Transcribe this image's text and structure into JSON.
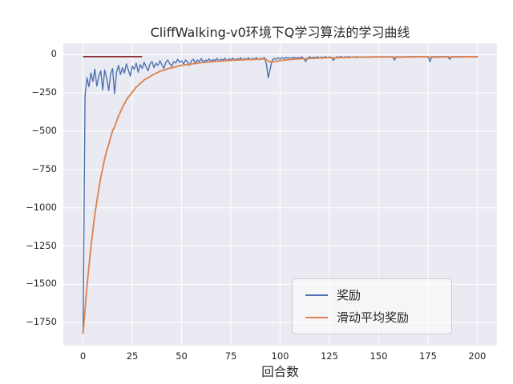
{
  "chart_data": {
    "type": "line",
    "title": "CliffWalking-v0环境下Q学习算法的学习曲线",
    "xlabel": "回合数",
    "ylabel": "",
    "grid": true,
    "legend_position": "lower right",
    "xlim": [
      -10,
      210
    ],
    "ylim": [
      -1900,
      75
    ],
    "x_ticks": [
      0,
      25,
      50,
      75,
      100,
      125,
      150,
      175,
      200
    ],
    "x_tick_labels": [
      "0",
      "25",
      "50",
      "75",
      "100",
      "125",
      "150",
      "175",
      "200"
    ],
    "y_ticks": [
      0,
      -250,
      -500,
      -750,
      -1000,
      -1250,
      -1500,
      -1750
    ],
    "y_tick_labels": [
      "0",
      "−250",
      "−500",
      "−750",
      "−1000",
      "−1250",
      "−1500",
      "−1750"
    ],
    "x_start": 0,
    "x_step": 1,
    "colors": {
      "plot_bg": "#eaeaf2",
      "grid": "#ffffff",
      "text": "#262626"
    },
    "reference_segment": {
      "x": [
        0,
        30
      ],
      "y": [
        -13,
        -13
      ],
      "color": "#8b2e2e"
    },
    "series": [
      {
        "name": "奖励",
        "color": "#4c72b0",
        "line_width": 1.4,
        "values": [
          -1820,
          -270,
          -150,
          -210,
          -120,
          -175,
          -95,
          -205,
          -140,
          -105,
          -230,
          -100,
          -155,
          -235,
          -125,
          -90,
          -255,
          -115,
          -70,
          -130,
          -85,
          -120,
          -60,
          -100,
          -140,
          -75,
          -95,
          -55,
          -115,
          -65,
          -90,
          -50,
          -80,
          -105,
          -60,
          -45,
          -85,
          -55,
          -70,
          -40,
          -65,
          -90,
          -50,
          -35,
          -60,
          -75,
          -45,
          -55,
          -30,
          -50,
          -40,
          -60,
          -35,
          -45,
          -70,
          -40,
          -30,
          -55,
          -35,
          -45,
          -25,
          -50,
          -35,
          -40,
          -28,
          -45,
          -32,
          -38,
          -25,
          -42,
          -30,
          -36,
          -24,
          -40,
          -28,
          -33,
          -22,
          -38,
          -26,
          -31,
          -21,
          -36,
          -25,
          -30,
          -20,
          -34,
          -24,
          -29,
          -19,
          -33,
          -23,
          -28,
          -18,
          -60,
          -150,
          -90,
          -35,
          -25,
          -30,
          -20,
          -28,
          -18,
          -26,
          -17,
          -24,
          -19,
          -22,
          -16,
          -25,
          -18,
          -21,
          -15,
          -23,
          -45,
          -20,
          -14,
          -22,
          -16,
          -19,
          -14,
          -21,
          -15,
          -18,
          -13,
          -20,
          -15,
          -17,
          -38,
          -19,
          -14,
          -17,
          -13,
          -18,
          -14,
          -16,
          -13,
          -18,
          -14,
          -16,
          -13,
          -17,
          -14,
          -16,
          -13,
          -17,
          -14,
          -15,
          -13,
          -16,
          -14,
          -15,
          -13,
          -16,
          -14,
          -15,
          -13,
          -16,
          -13,
          -35,
          -13,
          -15,
          -14,
          -15,
          -13,
          -15,
          -13,
          -14,
          -13,
          -15,
          -13,
          -14,
          -13,
          -15,
          -13,
          -14,
          -13,
          -45,
          -13,
          -14,
          -13,
          -14,
          -13,
          -14,
          -13,
          -14,
          -13,
          -30,
          -13,
          -14,
          -13,
          -14,
          -13,
          -14,
          -13,
          -14,
          -13,
          -14,
          -13,
          -14,
          -13,
          -13
        ]
      },
      {
        "name": "滑动平均奖励",
        "color": "#dd8452",
        "line_width": 1.9,
        "values": [
          -1820,
          -1665,
          -1514,
          -1383,
          -1257,
          -1149,
          -1043,
          -959,
          -878,
          -800,
          -743,
          -679,
          -627,
          -587,
          -541,
          -496,
          -472,
          -436,
          -400,
          -373,
          -344,
          -321,
          -295,
          -276,
          -262,
          -244,
          -229,
          -211,
          -202,
          -188,
          -178,
          -165,
          -157,
          -152,
          -143,
          -133,
          -128,
          -121,
          -116,
          -108,
          -104,
          -102,
          -97,
          -91,
          -88,
          -87,
          -82,
          -80,
          -75,
          -72,
          -69,
          -68,
          -65,
          -63,
          -64,
          -61,
          -58,
          -58,
          -55,
          -54,
          -52,
          -51,
          -50,
          -49,
          -47,
          -47,
          -45,
          -44,
          -43,
          -42,
          -41,
          -41,
          -39,
          -39,
          -38,
          -38,
          -36,
          -36,
          -35,
          -35,
          -33,
          -34,
          -33,
          -32,
          -31,
          -32,
          -31,
          -31,
          -29,
          -30,
          -29,
          -29,
          -28,
          -31,
          -43,
          -48,
          -46,
          -44,
          -43,
          -41,
          -39,
          -37,
          -36,
          -34,
          -33,
          -32,
          -31,
          -29,
          -29,
          -28,
          -27,
          -26,
          -26,
          -27,
          -26,
          -25,
          -25,
          -24,
          -23,
          -22,
          -22,
          -21,
          -21,
          -20,
          -20,
          -19,
          -19,
          -21,
          -21,
          -20,
          -20,
          -19,
          -19,
          -18,
          -18,
          -18,
          -17,
          -17,
          -17,
          -17,
          -16,
          -16,
          -16,
          -16,
          -16,
          -16,
          -16,
          -15,
          -15,
          -15,
          -15,
          -15,
          -15,
          -15,
          -15,
          -15,
          -15,
          -15,
          -17,
          -17,
          -16,
          -16,
          -16,
          -15,
          -15,
          -15,
          -15,
          -15,
          -15,
          -14,
          -14,
          -14,
          -14,
          -14,
          -14,
          -14,
          -17,
          -17,
          -16,
          -16,
          -16,
          -15,
          -15,
          -15,
          -15,
          -14,
          -16,
          -16,
          -15,
          -15,
          -15,
          -15,
          -15,
          -14,
          -14,
          -14,
          -14,
          -14,
          -14,
          -14,
          -14
        ]
      }
    ]
  }
}
